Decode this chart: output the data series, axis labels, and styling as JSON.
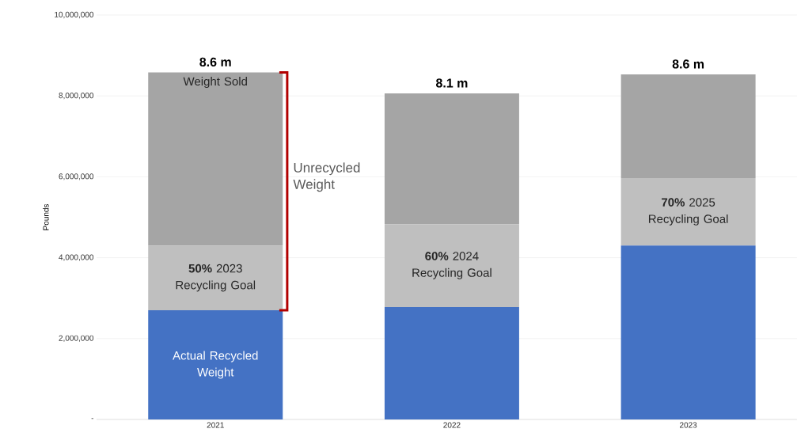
{
  "chart_data": {
    "type": "bar",
    "stacked": true,
    "ylabel": "Pounds",
    "categories": [
      "2021",
      "2022",
      "2023"
    ],
    "series": [
      {
        "color": "#4472c4",
        "values": [
          2700000,
          2780000,
          4300000
        ]
      },
      {
        "color": "#bfbfbf",
        "values": [
          1600000,
          2050000,
          1670000
        ]
      },
      {
        "color": "#a5a5a5",
        "values": [
          4280000,
          3230000,
          2560000
        ]
      }
    ],
    "totals": [
      "8.6 m",
      "8.1 m",
      "8.6 m"
    ],
    "ylim": [
      0,
      10000000
    ],
    "yticks": [
      {
        "value": 0,
        "label": "-"
      },
      {
        "value": 2000000,
        "label": "2,000,000"
      },
      {
        "value": 4000000,
        "label": "4,000,000"
      },
      {
        "value": 6000000,
        "label": "6,000,000"
      },
      {
        "value": 8000000,
        "label": "8,000,000"
      },
      {
        "value": 10000000,
        "label": "10,000,000"
      }
    ],
    "grid": "y",
    "annotations": [
      "Weight Sold",
      "Actual Recycled Weight",
      "**50%** 2023 Recycling Goal",
      "**60%** 2024 Recycling Goal",
      "**70%** 2025 Recycling Goal",
      "Unrecycled Weight"
    ]
  }
}
